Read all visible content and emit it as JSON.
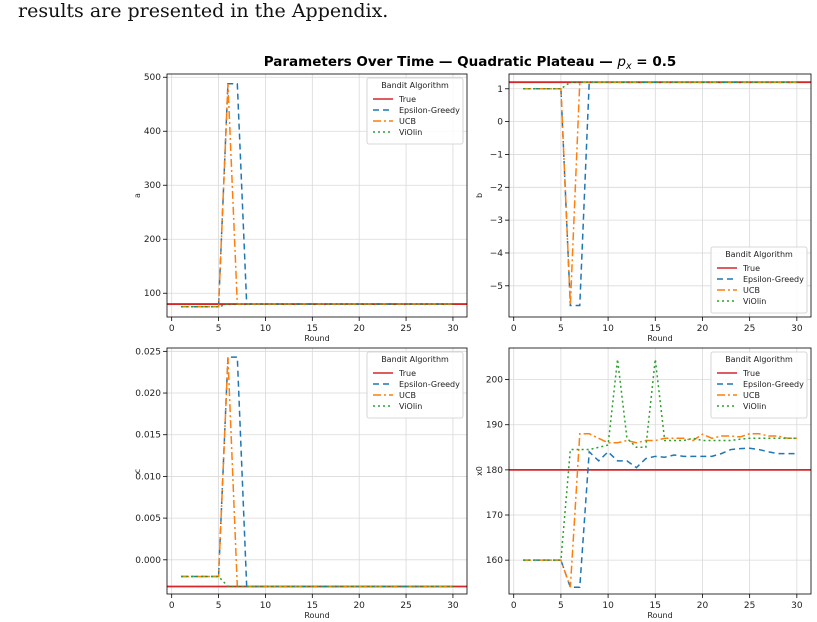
{
  "page": {
    "intro_text": "results are presented in the Appendix."
  },
  "figure": {
    "title_main": "Parameters Over Time — Quadratic Plateau — ",
    "title_px": "p",
    "title_px_sub": "x",
    "title_tail": " = 0.5"
  },
  "colors": {
    "true": "#d62728",
    "eps": "#1f77b4",
    "ucb": "#ff7f0e",
    "violin": "#2ca02c",
    "grid": "#d9d9d9"
  },
  "chart_data": [
    {
      "type": "line",
      "ylabel": "a",
      "xlabel": "Round",
      "xlim": [
        -0.5,
        31.5
      ],
      "ylim": [
        56,
        506
      ],
      "xticks": [
        0,
        5,
        10,
        15,
        20,
        25,
        30
      ],
      "yticks": [
        100,
        200,
        300,
        400,
        500
      ],
      "ytick_labels": [
        "100",
        "200",
        "300",
        "400",
        "500"
      ],
      "legend_title": "Bandit Algorithm",
      "legend_loc": "upper right",
      "true_value": 80,
      "series": [
        {
          "name": "True",
          "key": "true"
        },
        {
          "name": "Epsilon-Greedy",
          "key": "eps",
          "x": [
            1,
            2,
            3,
            4,
            5,
            6,
            7,
            8,
            9,
            10,
            11,
            12,
            13,
            14,
            15,
            16,
            17,
            18,
            19,
            20,
            21,
            22,
            23,
            24,
            25,
            26,
            27,
            28,
            29,
            30
          ],
          "y": [
            75,
            75,
            75,
            75,
            75,
            488,
            488,
            80,
            80,
            80,
            80,
            80,
            80,
            80,
            80,
            80,
            80,
            80,
            80,
            80,
            80,
            80,
            80,
            80,
            80,
            80,
            80,
            80,
            80,
            80
          ]
        },
        {
          "name": "UCB",
          "key": "ucb",
          "x": [
            1,
            2,
            3,
            4,
            5,
            6,
            7,
            8,
            9,
            10,
            11,
            12,
            13,
            14,
            15,
            16,
            17,
            18,
            19,
            20,
            21,
            22,
            23,
            24,
            25,
            26,
            27,
            28,
            29,
            30
          ],
          "y": [
            75,
            75,
            75,
            75,
            75,
            488,
            80,
            80,
            80,
            80,
            80,
            80,
            80,
            80,
            80,
            80,
            80,
            80,
            80,
            80,
            80,
            80,
            80,
            80,
            80,
            80,
            80,
            80,
            80,
            80
          ]
        },
        {
          "name": "ViOlin",
          "key": "violin",
          "x": [
            1,
            2,
            3,
            4,
            5,
            6,
            7,
            8,
            9,
            10,
            11,
            12,
            13,
            14,
            15,
            16,
            17,
            18,
            19,
            20,
            21,
            22,
            23,
            24,
            25,
            26,
            27,
            28,
            29,
            30
          ],
          "y": [
            75,
            75,
            75,
            75,
            75,
            80,
            80,
            80,
            80,
            80,
            80,
            80,
            80,
            80,
            80,
            80,
            80,
            80,
            80,
            80,
            80,
            80,
            80,
            80,
            80,
            80,
            80,
            80,
            80,
            80
          ]
        }
      ]
    },
    {
      "type": "line",
      "ylabel": "b",
      "xlabel": "Round",
      "xlim": [
        -0.5,
        31.5
      ],
      "ylim": [
        -5.95,
        1.45
      ],
      "xticks": [
        0,
        5,
        10,
        15,
        20,
        25,
        30
      ],
      "yticks": [
        1,
        0,
        -1,
        -2,
        -3,
        -4,
        -5
      ],
      "ytick_labels": [
        "1",
        "0",
        "−1",
        "−2",
        "−3",
        "−4",
        "−5"
      ],
      "legend_title": "Bandit Algorithm",
      "legend_loc": "lower right",
      "true_value": 1.2,
      "series": [
        {
          "name": "True",
          "key": "true"
        },
        {
          "name": "Epsilon-Greedy",
          "key": "eps",
          "x": [
            1,
            2,
            3,
            4,
            5,
            6,
            7,
            8,
            9,
            10,
            11,
            12,
            13,
            14,
            15,
            16,
            17,
            18,
            19,
            20,
            21,
            22,
            23,
            24,
            25,
            26,
            27,
            28,
            29,
            30
          ],
          "y": [
            1,
            1,
            1,
            1,
            1,
            -5.6,
            -5.6,
            1.2,
            1.2,
            1.2,
            1.2,
            1.2,
            1.2,
            1.2,
            1.2,
            1.2,
            1.2,
            1.2,
            1.2,
            1.2,
            1.2,
            1.2,
            1.2,
            1.2,
            1.2,
            1.2,
            1.2,
            1.2,
            1.2,
            1.2
          ]
        },
        {
          "name": "UCB",
          "key": "ucb",
          "x": [
            1,
            2,
            3,
            4,
            5,
            6,
            7,
            8,
            9,
            10,
            11,
            12,
            13,
            14,
            15,
            16,
            17,
            18,
            19,
            20,
            21,
            22,
            23,
            24,
            25,
            26,
            27,
            28,
            29,
            30
          ],
          "y": [
            1,
            1,
            1,
            1,
            1,
            -5.6,
            1.2,
            1.2,
            1.2,
            1.2,
            1.2,
            1.2,
            1.2,
            1.2,
            1.2,
            1.2,
            1.2,
            1.2,
            1.2,
            1.2,
            1.2,
            1.2,
            1.2,
            1.2,
            1.2,
            1.2,
            1.2,
            1.2,
            1.2,
            1.2
          ]
        },
        {
          "name": "ViOlin",
          "key": "violin",
          "x": [
            1,
            2,
            3,
            4,
            5,
            6,
            7,
            8,
            9,
            10,
            11,
            12,
            13,
            14,
            15,
            16,
            17,
            18,
            19,
            20,
            21,
            22,
            23,
            24,
            25,
            26,
            27,
            28,
            29,
            30
          ],
          "y": [
            1,
            1,
            1,
            1,
            1,
            1.2,
            1.2,
            1.2,
            1.2,
            1.2,
            1.2,
            1.2,
            1.2,
            1.2,
            1.2,
            1.2,
            1.2,
            1.2,
            1.2,
            1.2,
            1.2,
            1.2,
            1.2,
            1.2,
            1.2,
            1.2,
            1.2,
            1.2,
            1.2,
            1.2
          ]
        }
      ]
    },
    {
      "type": "line",
      "ylabel": "c",
      "xlabel": "Round",
      "xlim": [
        -0.5,
        31.5
      ],
      "ylim": [
        -0.0041,
        0.0254
      ],
      "xticks": [
        0,
        5,
        10,
        15,
        20,
        25,
        30
      ],
      "yticks": [
        0,
        0.005,
        0.01,
        0.015,
        0.02,
        0.025
      ],
      "ytick_labels": [
        "0.000",
        "0.005",
        "0.010",
        "0.015",
        "0.020",
        "0.025"
      ],
      "legend_title": "Bandit Algorithm",
      "legend_loc": "upper right",
      "true_value": -0.0032,
      "series": [
        {
          "name": "True",
          "key": "true"
        },
        {
          "name": "Epsilon-Greedy",
          "key": "eps",
          "x": [
            1,
            2,
            3,
            4,
            5,
            6,
            7,
            8,
            9,
            10,
            11,
            12,
            13,
            14,
            15,
            16,
            17,
            18,
            19,
            20,
            21,
            22,
            23,
            24,
            25,
            26,
            27,
            28,
            29,
            30
          ],
          "y": [
            -0.002,
            -0.002,
            -0.002,
            -0.002,
            -0.002,
            0.0243,
            0.0243,
            -0.0032,
            -0.0032,
            -0.0032,
            -0.0032,
            -0.0032,
            -0.0032,
            -0.0032,
            -0.0032,
            -0.0032,
            -0.0032,
            -0.0032,
            -0.0032,
            -0.0032,
            -0.0032,
            -0.0032,
            -0.0032,
            -0.0032,
            -0.0032,
            -0.0032,
            -0.0032,
            -0.0032,
            -0.0032,
            -0.0032
          ]
        },
        {
          "name": "UCB",
          "key": "ucb",
          "x": [
            1,
            2,
            3,
            4,
            5,
            6,
            7,
            8,
            9,
            10,
            11,
            12,
            13,
            14,
            15,
            16,
            17,
            18,
            19,
            20,
            21,
            22,
            23,
            24,
            25,
            26,
            27,
            28,
            29,
            30
          ],
          "y": [
            -0.002,
            -0.002,
            -0.002,
            -0.002,
            -0.002,
            0.0243,
            -0.0032,
            -0.0032,
            -0.0032,
            -0.0032,
            -0.0032,
            -0.0032,
            -0.0032,
            -0.0032,
            -0.0032,
            -0.0032,
            -0.0032,
            -0.0032,
            -0.0032,
            -0.0032,
            -0.0032,
            -0.0032,
            -0.0032,
            -0.0032,
            -0.0032,
            -0.0032,
            -0.0032,
            -0.0032,
            -0.0032,
            -0.0032
          ]
        },
        {
          "name": "ViOlin",
          "key": "violin",
          "x": [
            1,
            2,
            3,
            4,
            5,
            6,
            7,
            8,
            9,
            10,
            11,
            12,
            13,
            14,
            15,
            16,
            17,
            18,
            19,
            20,
            21,
            22,
            23,
            24,
            25,
            26,
            27,
            28,
            29,
            30
          ],
          "y": [
            -0.002,
            -0.002,
            -0.002,
            -0.002,
            -0.002,
            -0.0032,
            -0.0032,
            -0.0032,
            -0.0032,
            -0.0032,
            -0.0032,
            -0.0032,
            -0.0032,
            -0.0032,
            -0.0032,
            -0.0032,
            -0.0032,
            -0.0032,
            -0.0032,
            -0.0032,
            -0.0032,
            -0.0032,
            -0.0032,
            -0.0032,
            -0.0032,
            -0.0032,
            -0.0032,
            -0.0032,
            -0.0032,
            -0.0032
          ]
        }
      ]
    },
    {
      "type": "line",
      "ylabel": "x0",
      "xlabel": "Round",
      "xlim": [
        -0.5,
        31.5
      ],
      "ylim": [
        152.5,
        207
      ],
      "xticks": [
        0,
        5,
        10,
        15,
        20,
        25,
        30
      ],
      "yticks": [
        160,
        170,
        180,
        190,
        200
      ],
      "ytick_labels": [
        "160",
        "170",
        "180",
        "190",
        "200"
      ],
      "legend_title": "Bandit Algorithm",
      "legend_loc": "upper right",
      "true_value": 180,
      "series": [
        {
          "name": "True",
          "key": "true"
        },
        {
          "name": "Epsilon-Greedy",
          "key": "eps",
          "x": [
            1,
            2,
            3,
            4,
            5,
            6,
            7,
            8,
            9,
            10,
            11,
            12,
            13,
            14,
            15,
            16,
            17,
            18,
            19,
            20,
            21,
            22,
            23,
            24,
            25,
            26,
            27,
            28,
            29,
            30
          ],
          "y": [
            160,
            160,
            160,
            160,
            160,
            154,
            154,
            184,
            182,
            184,
            182,
            182,
            180.5,
            182.5,
            183,
            182.8,
            183.3,
            183,
            183,
            183,
            183,
            183.6,
            184.5,
            184.7,
            184.8,
            184.5,
            184,
            183.6,
            183.6,
            183.6
          ]
        },
        {
          "name": "UCB",
          "key": "ucb",
          "x": [
            1,
            2,
            3,
            4,
            5,
            6,
            7,
            8,
            9,
            10,
            11,
            12,
            13,
            14,
            15,
            16,
            17,
            18,
            19,
            20,
            21,
            22,
            23,
            24,
            25,
            26,
            27,
            28,
            29,
            30
          ],
          "y": [
            160,
            160,
            160,
            160,
            160,
            154,
            188,
            188,
            187,
            186,
            186,
            186.5,
            186,
            186.5,
            186.5,
            187,
            187,
            187,
            186.5,
            187.9,
            187,
            187.5,
            187.5,
            187.3,
            188,
            188,
            187.5,
            187.5,
            187,
            187
          ]
        },
        {
          "name": "ViOlin",
          "key": "violin",
          "x": [
            1,
            2,
            3,
            4,
            5,
            6,
            7,
            8,
            9,
            10,
            11,
            12,
            13,
            14,
            15,
            16,
            17,
            18,
            19,
            20,
            21,
            22,
            23,
            24,
            25,
            26,
            27,
            28,
            29,
            30
          ],
          "y": [
            160,
            160,
            160,
            160,
            160,
            184.5,
            184.5,
            184.5,
            185,
            185.5,
            204.5,
            187,
            185,
            185,
            204.5,
            186.5,
            186.5,
            186.5,
            187,
            186.5,
            186.5,
            186.5,
            186.5,
            186.8,
            187,
            187,
            187,
            187,
            187,
            187
          ]
        }
      ]
    }
  ]
}
